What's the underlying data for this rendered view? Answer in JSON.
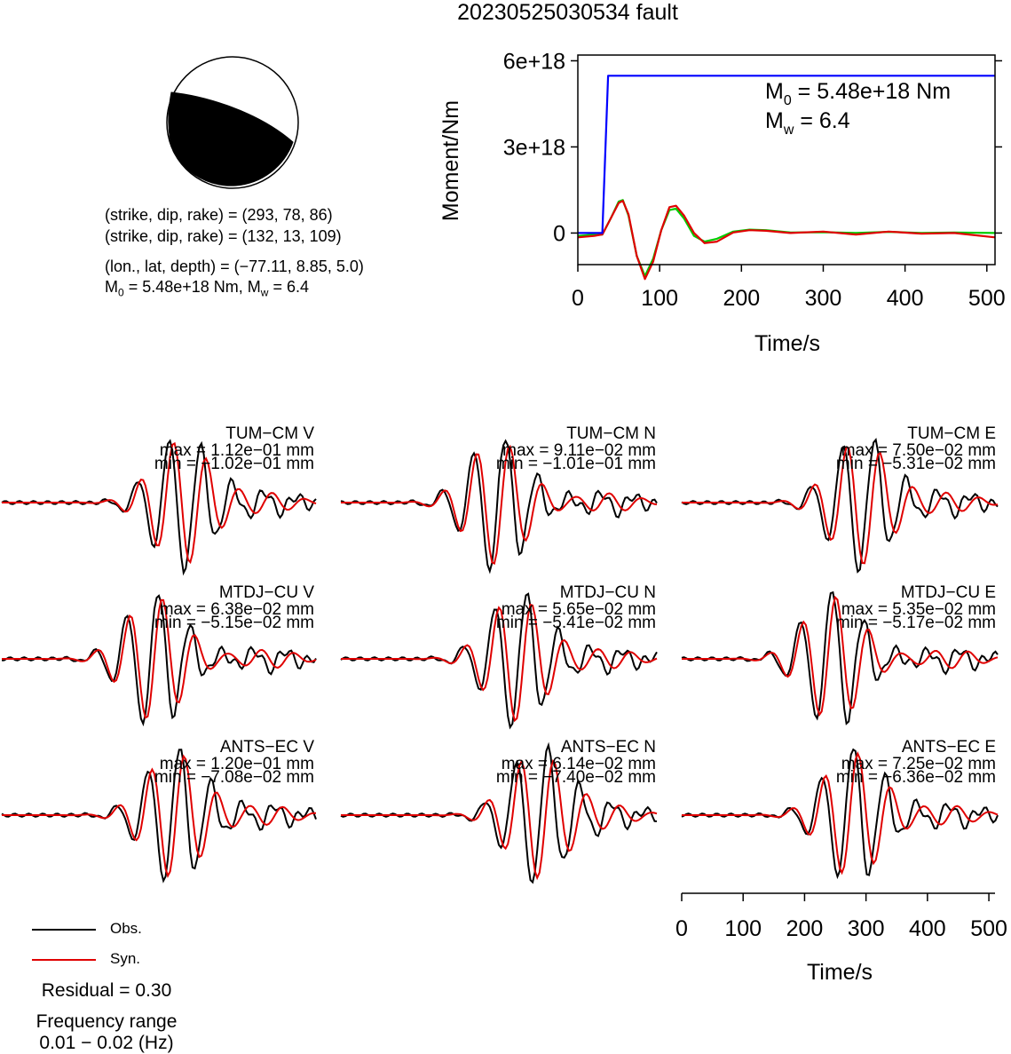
{
  "title": "20230525030534 fault",
  "beachball": {
    "fill_color": "#000000"
  },
  "params": {
    "line1": "(strike, dip, rake) = (293, 78, 86)",
    "line2": "(strike, dip, rake) = (132, 13, 109)",
    "line3": "(lon., lat, depth) = (−77.11, 8.85, 5.0)",
    "line4_prefix": "M",
    "line4_sub0": "0",
    "line4_mid": " = 5.48e+18 Nm, M",
    "line4_subw": "w",
    "line4_suffix": " = 6.4"
  },
  "moment_chart": {
    "type": "line",
    "xlabel": "Time/s",
    "ylabel": "Moment/Nm",
    "xlim": [
      0,
      510
    ],
    "ylim": [
      -1.1e+18,
      6.2e+18
    ],
    "x_ticks": [
      "0",
      "100",
      "200",
      "300",
      "400",
      "500"
    ],
    "x_tick_values": [
      0,
      100,
      200,
      300,
      400,
      500
    ],
    "y_ticks": [
      "0",
      "3e+18",
      "6e+18"
    ],
    "y_tick_values": [
      0,
      3e+18,
      6e+18
    ],
    "annotation": {
      "m0_prefix": "M",
      "m0_sub": "0",
      "m0_value": " = 5.48e+18 Nm",
      "mw_prefix": "M",
      "mw_sub": "w",
      "mw_value": " = 6.4"
    },
    "series": [
      {
        "color": "#0000ff",
        "x": [
          0,
          30,
          37,
          510
        ],
        "y": [
          0,
          0,
          5.48e+18,
          5.48e+18
        ]
      },
      {
        "color": "#00cc00",
        "x": [
          0,
          20,
          30,
          40,
          50,
          55,
          62,
          72,
          82,
          92,
          102,
          112,
          120,
          130,
          142,
          155,
          170,
          190,
          210,
          230,
          260,
          300,
          340,
          380,
          420,
          460,
          510
        ],
        "y": [
          -1e+17,
          -5e+16,
          -5e+16,
          5e+17,
          1.1e+18,
          1.15e+18,
          6e+17,
          -8e+17,
          -1.5e+18,
          -9e+17,
          1e+17,
          8e+17,
          8.5e+17,
          5e+17,
          -1e+17,
          -3e+17,
          -2e+17,
          5e+16,
          1.2e+17,
          1e+17,
          2e+16,
          3e+16,
          0,
          4e+16,
          0,
          2e+16,
          0
        ]
      },
      {
        "color": "#e00000",
        "x": [
          0,
          20,
          30,
          40,
          50,
          55,
          62,
          72,
          82,
          92,
          102,
          112,
          120,
          130,
          142,
          155,
          170,
          190,
          210,
          230,
          260,
          300,
          340,
          380,
          420,
          460,
          510
        ],
        "y": [
          -1.5e+17,
          -1e+17,
          -5e+16,
          5e+17,
          1.05e+18,
          1.12e+18,
          6.5e+17,
          -8e+17,
          -1.6e+18,
          -1e+18,
          1e+17,
          9e+17,
          9.5e+17,
          6e+17,
          0,
          -3.5e+17,
          -3e+17,
          2e+16,
          1e+17,
          8e+16,
          0,
          5e+16,
          -5e+16,
          5e+16,
          -2e+16,
          0,
          -1.5e+17
        ]
      }
    ]
  },
  "waveform_panels": [
    {
      "station": "TUM−CM V",
      "max": "max = 1.12e−01 mm",
      "min": "min = −1.02e−01 mm"
    },
    {
      "station": "TUM−CM N",
      "max": "max = 9.11e−02 mm",
      "min": "min = −1.01e−01 mm"
    },
    {
      "station": "TUM−CM E",
      "max": "max = 7.50e−02 mm",
      "min": "min = −5.31e−02 mm"
    },
    {
      "station": "MTDJ−CU V",
      "max": "max = 6.38e−02 mm",
      "min": "min = −5.15e−02 mm"
    },
    {
      "station": "MTDJ−CU N",
      "max": "max = 5.65e−02 mm",
      "min": "min = −5.41e−02 mm"
    },
    {
      "station": "MTDJ−CU E",
      "max": "max = 5.35e−02 mm",
      "min": "min = −5.17e−02 mm"
    },
    {
      "station": "ANTS−EC V",
      "max": "max = 1.20e−01 mm",
      "min": "min = −7.08e−02 mm"
    },
    {
      "station": "ANTS−EC N",
      "max": "max = 6.14e−02 mm",
      "min": "min = −7.40e−02 mm"
    },
    {
      "station": "ANTS−EC E",
      "max": "max = 7.25e−02 mm",
      "min": "min = −6.36e−02 mm"
    }
  ],
  "waveform_axis": {
    "xlabel": "Time/s",
    "xlim": [
      0,
      510
    ],
    "x_ticks": [
      "0",
      "100",
      "200",
      "300",
      "400",
      "500"
    ],
    "x_tick_values": [
      0,
      100,
      200,
      300,
      400,
      500
    ]
  },
  "legend": {
    "obs_label": "Obs.",
    "obs_color": "#000000",
    "syn_label": "Syn.",
    "syn_color": "#e00000"
  },
  "footer": {
    "residual": "Residual = 0.30",
    "freq_title": "Frequency range",
    "freq_range": "0.01 − 0.02 (Hz)"
  }
}
